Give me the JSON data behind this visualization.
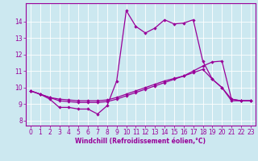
{
  "xlabel": "Windchill (Refroidissement éolien,°C)",
  "bg_color": "#cce8f0",
  "line_color": "#990099",
  "grid_color": "#ffffff",
  "x_ticks": [
    0,
    1,
    2,
    3,
    4,
    5,
    6,
    7,
    8,
    9,
    10,
    11,
    12,
    13,
    14,
    15,
    16,
    17,
    18,
    19,
    20,
    21,
    22,
    23
  ],
  "y_ticks": [
    8,
    9,
    10,
    11,
    12,
    13,
    14
  ],
  "ylim": [
    7.7,
    15.1
  ],
  "xlim": [
    -0.5,
    23.5
  ],
  "line1_x": [
    0,
    1,
    2,
    3,
    4,
    5,
    6,
    7,
    8,
    9,
    10,
    11,
    12,
    13,
    14,
    15,
    16,
    17,
    18,
    19,
    20,
    21,
    22,
    23
  ],
  "line1_y": [
    9.8,
    9.6,
    9.3,
    8.8,
    8.8,
    8.7,
    8.7,
    8.4,
    8.9,
    10.4,
    14.65,
    13.7,
    13.3,
    13.6,
    14.1,
    13.85,
    13.9,
    14.1,
    11.6,
    10.5,
    10.0,
    9.2,
    9.2,
    9.2
  ],
  "line2_x": [
    0,
    1,
    2,
    3,
    4,
    5,
    6,
    7,
    8,
    9,
    10,
    11,
    12,
    13,
    14,
    15,
    16,
    17,
    18,
    19,
    20,
    21,
    22,
    23
  ],
  "line2_y": [
    9.8,
    9.6,
    9.4,
    9.2,
    9.15,
    9.1,
    9.1,
    9.1,
    9.15,
    9.3,
    9.5,
    9.7,
    9.9,
    10.1,
    10.3,
    10.5,
    10.7,
    11.0,
    11.3,
    11.55,
    11.6,
    9.3,
    9.2,
    9.2
  ],
  "line3_x": [
    0,
    1,
    2,
    3,
    4,
    5,
    6,
    7,
    8,
    9,
    10,
    11,
    12,
    13,
    14,
    15,
    16,
    17,
    18,
    19,
    20,
    21,
    22,
    23
  ],
  "line3_y": [
    9.8,
    9.6,
    9.4,
    9.3,
    9.25,
    9.2,
    9.2,
    9.2,
    9.25,
    9.4,
    9.6,
    9.8,
    10.0,
    10.2,
    10.4,
    10.55,
    10.7,
    10.9,
    11.1,
    10.5,
    10.0,
    9.3,
    9.2,
    9.2
  ],
  "tick_fontsize": 5.5,
  "xlabel_fontsize": 5.5,
  "linewidth": 0.9,
  "markersize": 2.2
}
